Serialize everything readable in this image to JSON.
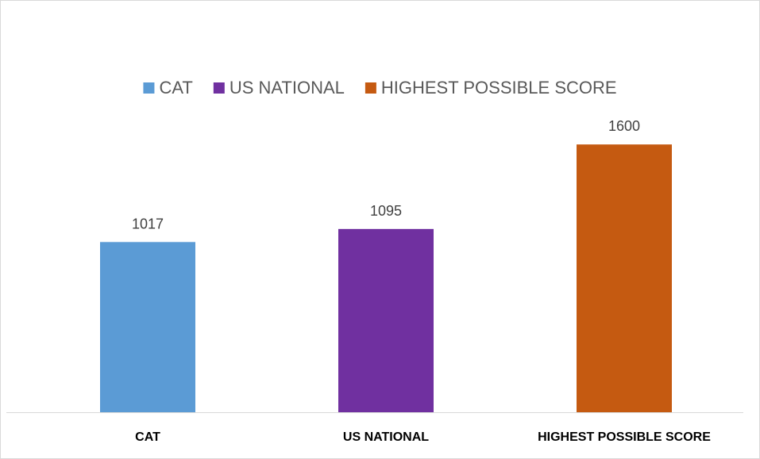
{
  "chart_data": {
    "type": "bar",
    "categories": [
      "CAT",
      "US NATIONAL",
      "HIGHEST POSSIBLE SCORE"
    ],
    "values": [
      1017,
      1095,
      1600
    ],
    "colors": [
      "#5b9bd5",
      "#7030a0",
      "#c55a11"
    ],
    "legend": {
      "position": "top",
      "entries": [
        "CAT",
        "US NATIONAL",
        "HIGHEST POSSIBLE SCORE"
      ]
    },
    "data_labels": [
      "1017",
      "1095",
      "1600"
    ],
    "ylim": [
      0,
      1800
    ],
    "grid": false,
    "title": "",
    "xlabel": "",
    "ylabel": ""
  }
}
